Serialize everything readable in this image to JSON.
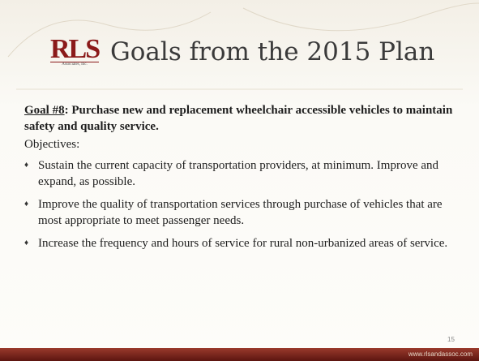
{
  "header": {
    "logo": "RLS",
    "logo_subtitle": "Associates, Inc.",
    "title": "Goals from the 2015 Plan"
  },
  "goal": {
    "label": "Goal #8",
    "text": ": Purchase new and replacement wheelchair accessible vehicles to maintain safety and quality service."
  },
  "objectives_label": "Objectives:",
  "objectives": [
    "Sustain the current capacity of transportation providers, at minimum. Improve and expand, as possible.",
    "Improve the quality of transportation services through purchase of vehicles that are most appropriate to meet passenger needs.",
    "Increase the frequency and hours of service for rural non-urbanized areas of service."
  ],
  "footer": {
    "page_number": "15",
    "url": "www.rlsandassoc.com"
  }
}
